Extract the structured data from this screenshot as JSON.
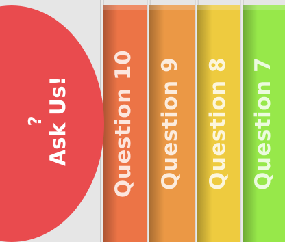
{
  "ask_tab": {
    "glyph": "?",
    "label": "Ask Us!",
    "color": "#e94b4e"
  },
  "questions": [
    {
      "label": "Question 10",
      "color": "#ec7446"
    },
    {
      "label": "Question 9",
      "color": "#eb9845"
    },
    {
      "label": "Question 8",
      "color": "#eecb3f"
    },
    {
      "label": "Question 7",
      "color": "#97e84a"
    }
  ]
}
